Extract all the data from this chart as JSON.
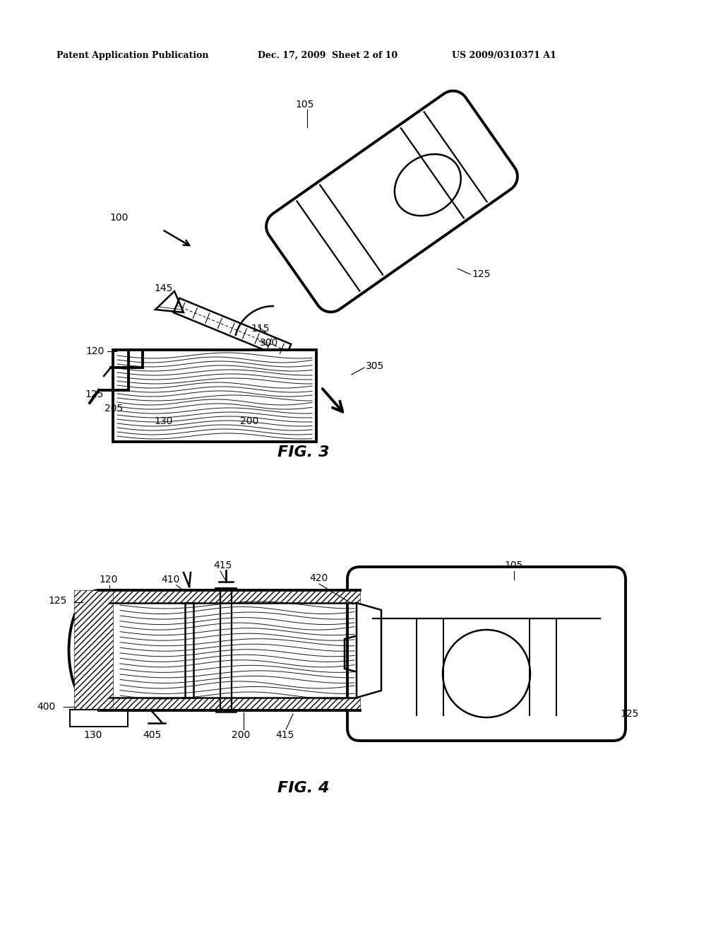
{
  "bg_color": "#ffffff",
  "line_color": "#000000",
  "header_left": "Patent Application Publication",
  "header_mid": "Dec. 17, 2009  Sheet 2 of 10",
  "header_right": "US 2009/0310371 A1",
  "fig3_caption": "FIG. 3",
  "fig4_caption": "FIG. 4",
  "lw": 1.8,
  "tlw": 2.8,
  "label_fs": 10
}
